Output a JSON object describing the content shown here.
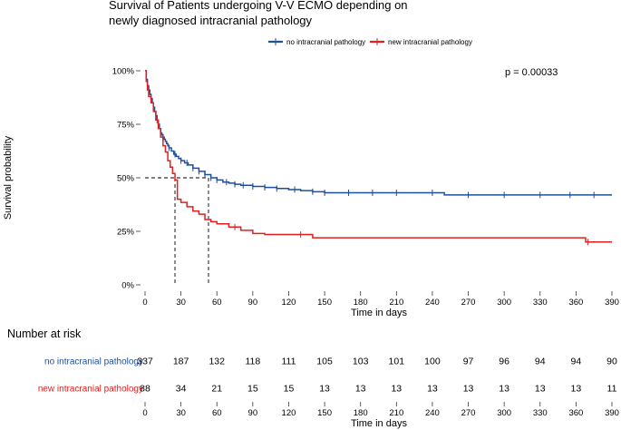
{
  "chart_data": [
    {
      "type": "line",
      "subtype": "kaplan-meier",
      "title_lines": [
        "Survival of Patients undergoing V-V ECMO depending on",
        "newly diagnosed intracranial pathology"
      ],
      "xlabel": "Time in days",
      "ylabel": "Survival probability",
      "xlim": [
        0,
        390
      ],
      "ylim": [
        0,
        1
      ],
      "x_ticks": [
        0,
        30,
        60,
        90,
        120,
        150,
        180,
        210,
        240,
        270,
        300,
        330,
        360,
        390
      ],
      "y_ticks": [
        {
          "value": 0,
          "label": "0%"
        },
        {
          "value": 0.25,
          "label": "25%"
        },
        {
          "value": 0.5,
          "label": "50%"
        },
        {
          "value": 0.75,
          "label": "75%"
        },
        {
          "value": 1.0,
          "label": "100%"
        }
      ],
      "p_value": "p = 0.00033",
      "legend_position": "top-center",
      "median_line_y": 0.5,
      "median_times": [
        25,
        53
      ],
      "series": [
        {
          "name": "no intracranial pathology",
          "color": "#1f4e9c",
          "x": [
            0,
            1,
            2,
            3,
            4,
            5,
            6,
            7,
            8,
            9,
            10,
            11,
            12,
            13,
            14,
            15,
            16,
            17,
            18,
            19,
            20,
            22,
            24,
            26,
            28,
            30,
            33,
            36,
            40,
            45,
            50,
            55,
            60,
            65,
            70,
            75,
            80,
            90,
            100,
            110,
            120,
            130,
            140,
            150,
            165,
            180,
            195,
            210,
            225,
            240,
            250,
            270,
            300,
            330,
            360,
            390
          ],
          "y": [
            1.0,
            0.96,
            0.93,
            0.91,
            0.89,
            0.87,
            0.85,
            0.83,
            0.81,
            0.79,
            0.77,
            0.75,
            0.73,
            0.71,
            0.7,
            0.69,
            0.68,
            0.67,
            0.66,
            0.65,
            0.64,
            0.625,
            0.61,
            0.6,
            0.59,
            0.58,
            0.57,
            0.56,
            0.545,
            0.53,
            0.515,
            0.5,
            0.49,
            0.48,
            0.475,
            0.47,
            0.465,
            0.46,
            0.455,
            0.45,
            0.445,
            0.44,
            0.435,
            0.43,
            0.43,
            0.43,
            0.43,
            0.43,
            0.43,
            0.43,
            0.42,
            0.42,
            0.42,
            0.42,
            0.42,
            0.42
          ],
          "censor_x": [
            10,
            15,
            20,
            25,
            30,
            35,
            40,
            45,
            50,
            55,
            60,
            68,
            75,
            82,
            90,
            100,
            110,
            125,
            140,
            150,
            170,
            190,
            210,
            240,
            270,
            300,
            330,
            355,
            375
          ]
        },
        {
          "name": "new intracranial pathology",
          "color": "#e02020",
          "x": [
            0,
            1,
            2,
            3,
            5,
            7,
            9,
            11,
            13,
            15,
            17,
            19,
            21,
            23,
            25,
            27,
            30,
            35,
            40,
            45,
            50,
            55,
            60,
            70,
            80,
            90,
            100,
            120,
            140,
            150,
            200,
            250,
            300,
            350,
            368,
            390
          ],
          "y": [
            1.0,
            0.95,
            0.91,
            0.88,
            0.85,
            0.81,
            0.77,
            0.73,
            0.69,
            0.65,
            0.62,
            0.58,
            0.55,
            0.52,
            0.49,
            0.4,
            0.385,
            0.365,
            0.345,
            0.33,
            0.305,
            0.295,
            0.285,
            0.27,
            0.255,
            0.24,
            0.235,
            0.235,
            0.22,
            0.22,
            0.22,
            0.22,
            0.22,
            0.22,
            0.2,
            0.2
          ],
          "censor_x": [
            75,
            130,
            370
          ]
        }
      ]
    },
    {
      "type": "table",
      "title": "Number at risk",
      "xlabel": "Time in days",
      "x_ticks": [
        0,
        30,
        60,
        90,
        120,
        150,
        180,
        210,
        240,
        270,
        300,
        330,
        360,
        390
      ],
      "rows": [
        {
          "label": "no intracranial pathology",
          "color": "#1f4e9c",
          "values": [
            337,
            187,
            132,
            118,
            111,
            105,
            103,
            101,
            100,
            97,
            96,
            94,
            94,
            90
          ]
        },
        {
          "label": "new intracranial pathology",
          "color": "#e02020",
          "values": [
            88,
            34,
            21,
            15,
            15,
            13,
            13,
            13,
            13,
            13,
            13,
            13,
            13,
            11
          ]
        }
      ]
    }
  ]
}
